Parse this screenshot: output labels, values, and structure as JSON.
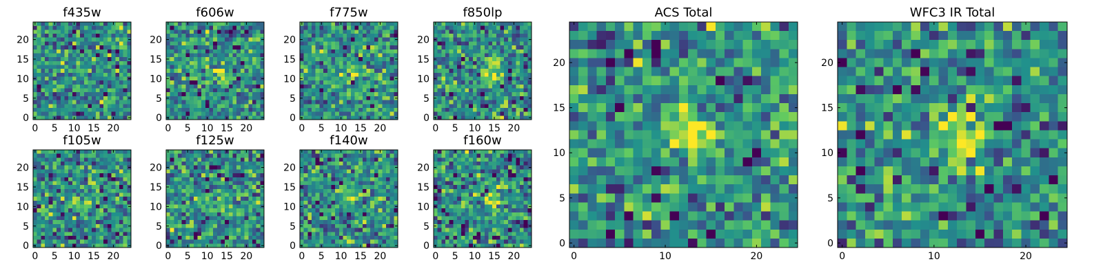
{
  "chart_data": [
    {
      "type": "heatmap",
      "title": "f435w",
      "xticks": [
        "0",
        "5",
        "10",
        "15",
        "20"
      ],
      "yticks": [
        "0",
        "5",
        "10",
        "15",
        "20"
      ],
      "xlim": [
        -0.5,
        24.5
      ],
      "ylim": [
        -0.5,
        24.5
      ],
      "grid": false,
      "colormap": "viridis",
      "source_blob": {
        "x": 12.0,
        "y": 11.5,
        "strength": 0.05
      }
    },
    {
      "type": "heatmap",
      "title": "f606w",
      "xticks": [
        "0",
        "5",
        "10",
        "15",
        "20"
      ],
      "yticks": [
        "0",
        "5",
        "10",
        "15",
        "20"
      ],
      "xlim": [
        -0.5,
        24.5
      ],
      "ylim": [
        -0.5,
        24.5
      ],
      "grid": false,
      "colormap": "viridis",
      "source_blob": {
        "x": 13.0,
        "y": 11.5,
        "strength": 0.3
      }
    },
    {
      "type": "heatmap",
      "title": "f775w",
      "xticks": [
        "0",
        "5",
        "10",
        "15",
        "20"
      ],
      "yticks": [
        "0",
        "5",
        "10",
        "15",
        "20"
      ],
      "xlim": [
        -0.5,
        24.5
      ],
      "ylim": [
        -0.5,
        24.5
      ],
      "grid": false,
      "colormap": "viridis",
      "source_blob": {
        "x": 13.0,
        "y": 11.5,
        "strength": 0.4
      }
    },
    {
      "type": "heatmap",
      "title": "f850lp",
      "xticks": [
        "0",
        "5",
        "10",
        "15",
        "20"
      ],
      "yticks": [
        "0",
        "5",
        "10",
        "15",
        "20"
      ],
      "xlim": [
        -0.5,
        24.5
      ],
      "ylim": [
        -0.5,
        24.5
      ],
      "grid": false,
      "colormap": "viridis",
      "source_blob": {
        "x": 14.0,
        "y": 12.0,
        "strength": 0.35
      }
    },
    {
      "type": "heatmap",
      "title": "f105w",
      "xticks": [
        "0",
        "5",
        "10",
        "15",
        "20"
      ],
      "yticks": [
        "0",
        "5",
        "10",
        "15",
        "20"
      ],
      "xlim": [
        -0.5,
        24.5
      ],
      "ylim": [
        -0.5,
        24.5
      ],
      "grid": false,
      "colormap": "viridis",
      "source_blob": {
        "x": 12.0,
        "y": 11.0,
        "strength": 0.35
      }
    },
    {
      "type": "heatmap",
      "title": "f125w",
      "xticks": [
        "0",
        "5",
        "10",
        "15",
        "20"
      ],
      "yticks": [
        "0",
        "5",
        "10",
        "15",
        "20"
      ],
      "xlim": [
        -0.5,
        24.5
      ],
      "ylim": [
        -0.5,
        24.5
      ],
      "grid": false,
      "colormap": "viridis",
      "source_blob": {
        "x": 13.0,
        "y": 11.0,
        "strength": 0.25
      }
    },
    {
      "type": "heatmap",
      "title": "f140w",
      "xticks": [
        "0",
        "5",
        "10",
        "15",
        "20"
      ],
      "yticks": [
        "0",
        "5",
        "10",
        "15",
        "20"
      ],
      "xlim": [
        -0.5,
        24.5
      ],
      "ylim": [
        -0.5,
        24.5
      ],
      "grid": false,
      "colormap": "viridis",
      "source_blob": {
        "x": 13.0,
        "y": 12.0,
        "strength": 0.3
      }
    },
    {
      "type": "heatmap",
      "title": "f160w",
      "xticks": [
        "0",
        "5",
        "10",
        "15",
        "20"
      ],
      "yticks": [
        "0",
        "5",
        "10",
        "15",
        "20"
      ],
      "xlim": [
        -0.5,
        24.5
      ],
      "ylim": [
        -0.5,
        24.5
      ],
      "grid": false,
      "colormap": "viridis",
      "source_blob": {
        "x": 14.0,
        "y": 12.0,
        "strength": 0.35
      }
    },
    {
      "type": "heatmap",
      "title": "ACS Total",
      "xticks": [
        "0",
        "10",
        "20"
      ],
      "yticks": [
        "0",
        "5",
        "10",
        "15",
        "20"
      ],
      "xlim": [
        -0.5,
        24.5
      ],
      "ylim": [
        -0.5,
        24.5
      ],
      "grid": false,
      "colormap": "viridis",
      "source_blob": {
        "x": 13.0,
        "y": 12.5,
        "strength": 0.45
      }
    },
    {
      "type": "heatmap",
      "title": "WFC3 IR Total",
      "xticks": [
        "0",
        "10",
        "20"
      ],
      "yticks": [
        "0",
        "5",
        "10",
        "15",
        "20"
      ],
      "xlim": [
        -0.5,
        24.5
      ],
      "ylim": [
        -0.5,
        24.5
      ],
      "grid": false,
      "colormap": "viridis",
      "source_blob": {
        "x": 13.0,
        "y": 12.0,
        "strength": 0.45
      }
    }
  ],
  "colors": {
    "viridis": [
      "#440154",
      "#3b528b",
      "#21918c",
      "#5ec962",
      "#fde725"
    ],
    "frame": "#000000"
  }
}
